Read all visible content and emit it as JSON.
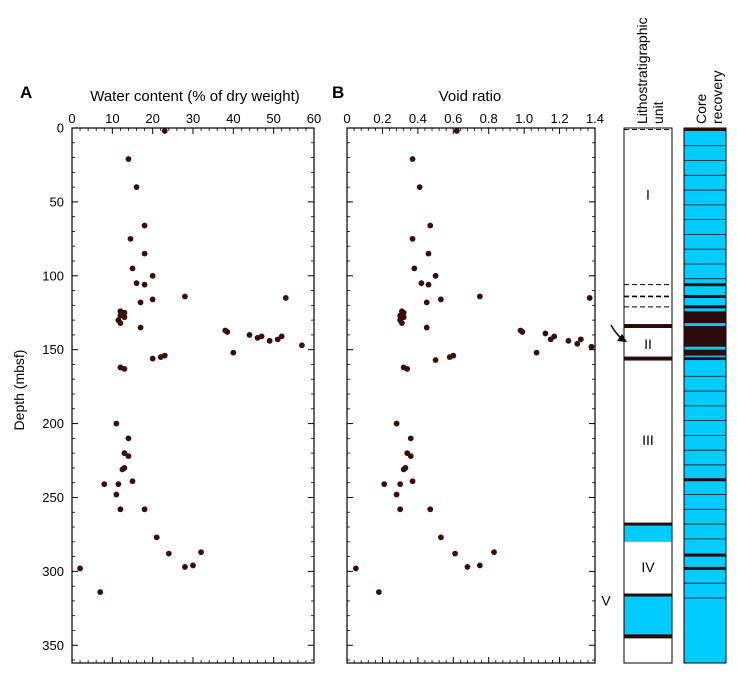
{
  "chart_data": [
    {
      "type": "scatter",
      "panel_label": "A",
      "xlabel": "Water content (% of dry weight)",
      "ylabel": "Depth (mbsf)",
      "xlim": [
        0,
        60
      ],
      "ylim": [
        0,
        360
      ],
      "y_inverted": true,
      "x_ticks": [
        "0",
        "10",
        "20",
        "30",
        "40",
        "50",
        "60"
      ],
      "y_ticks": [
        "0",
        "50",
        "100",
        "150",
        "200",
        "250",
        "300",
        "350"
      ],
      "marker_color": "#3a0c0c",
      "points": [
        {
          "x": 23,
          "y": 2
        },
        {
          "x": 14,
          "y": 21
        },
        {
          "x": 16,
          "y": 40
        },
        {
          "x": 18,
          "y": 66
        },
        {
          "x": 14.5,
          "y": 75
        },
        {
          "x": 18,
          "y": 85
        },
        {
          "x": 15,
          "y": 95
        },
        {
          "x": 20,
          "y": 100
        },
        {
          "x": 16,
          "y": 105
        },
        {
          "x": 18,
          "y": 106
        },
        {
          "x": 28,
          "y": 114
        },
        {
          "x": 20,
          "y": 116
        },
        {
          "x": 17,
          "y": 118
        },
        {
          "x": 53,
          "y": 115
        },
        {
          "x": 12,
          "y": 124
        },
        {
          "x": 13,
          "y": 125
        },
        {
          "x": 12,
          "y": 127
        },
        {
          "x": 13,
          "y": 128
        },
        {
          "x": 11.5,
          "y": 130
        },
        {
          "x": 12,
          "y": 132
        },
        {
          "x": 17,
          "y": 135
        },
        {
          "x": 38,
          "y": 137
        },
        {
          "x": 38.5,
          "y": 138
        },
        {
          "x": 44,
          "y": 140
        },
        {
          "x": 46,
          "y": 142
        },
        {
          "x": 47,
          "y": 141
        },
        {
          "x": 49,
          "y": 144
        },
        {
          "x": 51,
          "y": 143
        },
        {
          "x": 52,
          "y": 141
        },
        {
          "x": 57,
          "y": 147
        },
        {
          "x": 40,
          "y": 152
        },
        {
          "x": 22,
          "y": 155
        },
        {
          "x": 23,
          "y": 154
        },
        {
          "x": 20,
          "y": 156
        },
        {
          "x": 12,
          "y": 162
        },
        {
          "x": 13,
          "y": 163
        },
        {
          "x": 11,
          "y": 200
        },
        {
          "x": 14,
          "y": 210
        },
        {
          "x": 13,
          "y": 220
        },
        {
          "x": 14,
          "y": 222
        },
        {
          "x": 13,
          "y": 230
        },
        {
          "x": 12.5,
          "y": 231
        },
        {
          "x": 15,
          "y": 239
        },
        {
          "x": 8,
          "y": 241
        },
        {
          "x": 11.5,
          "y": 241
        },
        {
          "x": 11,
          "y": 248
        },
        {
          "x": 12,
          "y": 258
        },
        {
          "x": 18,
          "y": 258
        },
        {
          "x": 21,
          "y": 277
        },
        {
          "x": 24,
          "y": 288
        },
        {
          "x": 32,
          "y": 287
        },
        {
          "x": 30,
          "y": 296
        },
        {
          "x": 28,
          "y": 297
        },
        {
          "x": 2,
          "y": 298
        },
        {
          "x": 7,
          "y": 314
        }
      ]
    },
    {
      "type": "scatter",
      "panel_label": "B",
      "xlabel": "Void ratio",
      "ylabel": "",
      "xlim": [
        0,
        1.4
      ],
      "ylim": [
        0,
        360
      ],
      "y_inverted": true,
      "x_ticks": [
        "0",
        "0.2",
        "0.4",
        "0.6",
        "0.8",
        "1.0",
        "1.2",
        "1.4"
      ],
      "marker_color": "#3a0c0c",
      "points": [
        {
          "x": 0.62,
          "y": 2
        },
        {
          "x": 0.37,
          "y": 21
        },
        {
          "x": 0.41,
          "y": 40
        },
        {
          "x": 0.47,
          "y": 66
        },
        {
          "x": 0.37,
          "y": 75
        },
        {
          "x": 0.46,
          "y": 85
        },
        {
          "x": 0.38,
          "y": 95
        },
        {
          "x": 0.5,
          "y": 100
        },
        {
          "x": 0.42,
          "y": 105
        },
        {
          "x": 0.46,
          "y": 106
        },
        {
          "x": 0.75,
          "y": 114
        },
        {
          "x": 0.53,
          "y": 116
        },
        {
          "x": 0.45,
          "y": 118
        },
        {
          "x": 1.37,
          "y": 115
        },
        {
          "x": 0.31,
          "y": 124
        },
        {
          "x": 0.32,
          "y": 125
        },
        {
          "x": 0.3,
          "y": 127
        },
        {
          "x": 0.32,
          "y": 128
        },
        {
          "x": 0.3,
          "y": 130
        },
        {
          "x": 0.31,
          "y": 132
        },
        {
          "x": 0.45,
          "y": 135
        },
        {
          "x": 0.98,
          "y": 137
        },
        {
          "x": 0.99,
          "y": 138
        },
        {
          "x": 1.12,
          "y": 139
        },
        {
          "x": 1.17,
          "y": 141
        },
        {
          "x": 1.15,
          "y": 143
        },
        {
          "x": 1.25,
          "y": 144
        },
        {
          "x": 1.3,
          "y": 146
        },
        {
          "x": 1.32,
          "y": 143
        },
        {
          "x": 1.38,
          "y": 148
        },
        {
          "x": 1.07,
          "y": 152
        },
        {
          "x": 0.58,
          "y": 155
        },
        {
          "x": 0.6,
          "y": 154
        },
        {
          "x": 0.5,
          "y": 157
        },
        {
          "x": 0.32,
          "y": 162
        },
        {
          "x": 0.34,
          "y": 163
        },
        {
          "x": 0.28,
          "y": 200
        },
        {
          "x": 0.36,
          "y": 210
        },
        {
          "x": 0.34,
          "y": 220
        },
        {
          "x": 0.36,
          "y": 222
        },
        {
          "x": 0.33,
          "y": 230
        },
        {
          "x": 0.32,
          "y": 231
        },
        {
          "x": 0.37,
          "y": 239
        },
        {
          "x": 0.21,
          "y": 241
        },
        {
          "x": 0.3,
          "y": 241
        },
        {
          "x": 0.28,
          "y": 248
        },
        {
          "x": 0.3,
          "y": 258
        },
        {
          "x": 0.47,
          "y": 258
        },
        {
          "x": 0.53,
          "y": 277
        },
        {
          "x": 0.61,
          "y": 288
        },
        {
          "x": 0.83,
          "y": 287
        },
        {
          "x": 0.75,
          "y": 296
        },
        {
          "x": 0.68,
          "y": 297
        },
        {
          "x": 0.05,
          "y": 298
        },
        {
          "x": 0.18,
          "y": 314
        }
      ]
    }
  ],
  "lithology": {
    "title_lines": [
      "Lithostratigraphic",
      "unit"
    ],
    "units": [
      {
        "label": "I",
        "top": 0,
        "bottom": 134
      },
      {
        "label": "II",
        "top": 134,
        "bottom": 156
      },
      {
        "label": "III",
        "top": 156,
        "bottom": 268
      },
      {
        "label": "IV",
        "top": 280,
        "bottom": 316
      },
      {
        "label": "V",
        "top": 316,
        "bottom": 344
      }
    ],
    "solid_boundaries_mbsf": [
      134,
      156,
      344
    ],
    "dashed_boundaries_mbsf": [
      1,
      106,
      114,
      121
    ],
    "blue_bands_mbsf": [
      [
        268,
        280
      ],
      [
        316,
        344
      ]
    ],
    "fill_color": "#00ccff",
    "line_color": "#2d0b0b"
  },
  "core_recovery": {
    "title_lines": [
      "Core",
      "recovery"
    ],
    "fill_color": "#00ccff",
    "dark_color": "#2d0b0b",
    "thin_lines_mbsf": [
      12,
      22,
      32,
      42,
      52,
      62,
      72,
      82,
      92,
      102,
      168,
      178,
      188,
      198,
      208,
      218,
      228,
      248,
      258,
      268,
      278,
      308,
      318
    ],
    "thick_lines_mbsf": [
      1,
      106,
      114,
      121,
      156,
      238,
      289,
      298
    ],
    "dark_blocks_mbsf": [
      [
        124,
        132
      ],
      [
        134,
        148
      ],
      [
        150,
        154
      ]
    ]
  }
}
